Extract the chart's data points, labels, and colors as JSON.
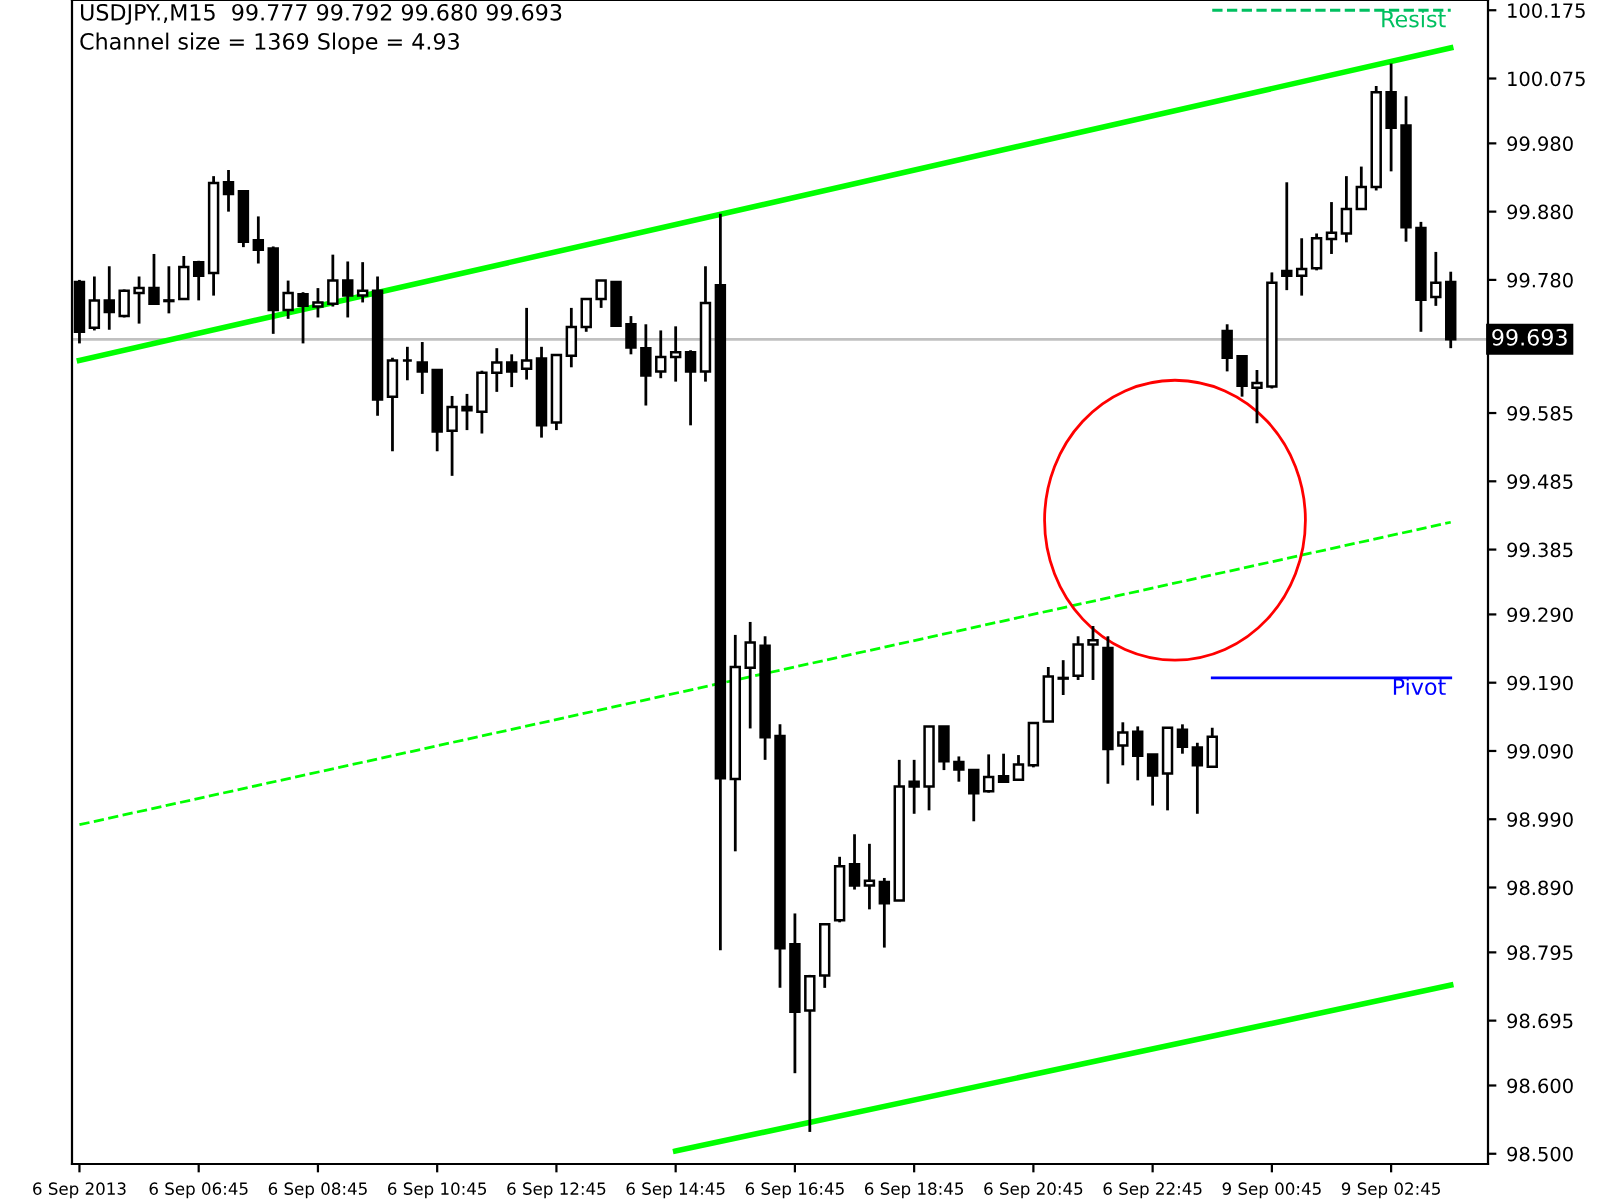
{
  "chart_data": {
    "type": "candlestick",
    "title": "USDJPY.,M15  99.777 99.792 99.680 99.693",
    "annotations": [
      "Channel size = 1369 Slope = 4.93"
    ],
    "categories": [
      "6 Sep 2013",
      null,
      null,
      null,
      null,
      null,
      null,
      null,
      "6 Sep 06:45",
      null,
      null,
      null,
      null,
      null,
      null,
      null,
      "6 Sep 08:45",
      null,
      null,
      null,
      null,
      null,
      null,
      null,
      "6 Sep 10:45",
      null,
      null,
      null,
      null,
      null,
      null,
      null,
      "6 Sep 12:45",
      null,
      null,
      null,
      null,
      null,
      null,
      null,
      "6 Sep 14:45",
      null,
      null,
      null,
      null,
      null,
      null,
      null,
      "6 Sep 16:45",
      null,
      null,
      null,
      null,
      null,
      null,
      null,
      "6 Sep 18:45",
      null,
      null,
      null,
      null,
      null,
      null,
      null,
      "6 Sep 20:45",
      null,
      null,
      null,
      null,
      null,
      null,
      null,
      "6 Sep 22:45",
      null,
      null,
      null,
      null,
      null,
      null,
      null,
      "9 Sep 00:45",
      null,
      null,
      null,
      null,
      null,
      null,
      null,
      "9 Sep 02:45",
      null,
      null,
      null,
      null
    ],
    "ohlc": [
      [
        99.777,
        99.78,
        99.687,
        99.704
      ],
      [
        99.71,
        99.785,
        99.706,
        99.75
      ],
      [
        99.75,
        99.8,
        99.707,
        99.733
      ],
      [
        99.727,
        99.766,
        99.725,
        99.764
      ],
      [
        99.761,
        99.785,
        99.716,
        99.768
      ],
      [
        99.768,
        99.818,
        99.745,
        99.745
      ],
      [
        99.749,
        99.8,
        99.731,
        99.75
      ],
      [
        99.752,
        99.815,
        99.752,
        99.799
      ],
      [
        99.806,
        99.808,
        99.75,
        99.786
      ],
      [
        99.79,
        99.932,
        99.757,
        99.922
      ],
      [
        99.923,
        99.941,
        99.88,
        99.906
      ],
      [
        99.91,
        99.91,
        99.828,
        99.836
      ],
      [
        99.838,
        99.873,
        99.804,
        99.824
      ],
      [
        99.826,
        99.829,
        99.701,
        99.736
      ],
      [
        99.736,
        99.779,
        99.723,
        99.761
      ],
      [
        99.759,
        99.762,
        99.687,
        99.742
      ],
      [
        99.741,
        99.768,
        99.725,
        99.747
      ],
      [
        99.745,
        99.817,
        99.741,
        99.779
      ],
      [
        99.779,
        99.807,
        99.725,
        99.757
      ],
      [
        99.757,
        99.806,
        99.747,
        99.764
      ],
      [
        99.764,
        99.785,
        99.581,
        99.605
      ],
      [
        99.609,
        99.666,
        99.529,
        99.662
      ],
      [
        99.662,
        99.682,
        99.633,
        99.662
      ],
      [
        99.659,
        99.689,
        99.613,
        99.646
      ],
      [
        99.648,
        99.648,
        99.529,
        99.558
      ],
      [
        99.559,
        99.61,
        99.493,
        99.594
      ],
      [
        99.594,
        99.613,
        99.56,
        99.589
      ],
      [
        99.587,
        99.647,
        99.555,
        99.644
      ],
      [
        99.644,
        99.68,
        99.616,
        99.659
      ],
      [
        99.659,
        99.671,
        99.623,
        99.646
      ],
      [
        99.65,
        99.739,
        99.634,
        99.662
      ],
      [
        99.665,
        99.682,
        99.549,
        99.567
      ],
      [
        99.571,
        99.67,
        99.56,
        99.67
      ],
      [
        99.669,
        99.739,
        99.652,
        99.711
      ],
      [
        99.711,
        99.752,
        99.704,
        99.752
      ],
      [
        99.752,
        99.779,
        99.739,
        99.779
      ],
      [
        99.777,
        99.777,
        99.713,
        99.713
      ],
      [
        99.715,
        99.727,
        99.671,
        99.681
      ],
      [
        99.68,
        99.715,
        99.596,
        99.64
      ],
      [
        99.646,
        99.706,
        99.636,
        99.667
      ],
      [
        99.667,
        99.712,
        99.631,
        99.674
      ],
      [
        99.674,
        99.677,
        99.567,
        99.646
      ],
      [
        99.646,
        99.8,
        99.631,
        99.746
      ],
      [
        99.772,
        99.877,
        98.798,
        99.05
      ],
      [
        99.049,
        99.26,
        98.943,
        99.213
      ],
      [
        99.212,
        99.279,
        99.123,
        99.249
      ],
      [
        99.244,
        99.258,
        99.077,
        99.11
      ],
      [
        99.112,
        99.129,
        98.743,
        98.801
      ],
      [
        98.807,
        98.852,
        98.618,
        98.708
      ],
      [
        98.71,
        98.762,
        98.532,
        98.76
      ],
      [
        98.761,
        98.836,
        98.743,
        98.836
      ],
      [
        98.842,
        98.935,
        98.839,
        98.921
      ],
      [
        98.924,
        98.968,
        98.887,
        98.893
      ],
      [
        98.893,
        98.954,
        98.858,
        98.9
      ],
      [
        98.898,
        98.904,
        98.802,
        98.867
      ],
      [
        98.871,
        99.077,
        98.871,
        99.038
      ],
      [
        99.045,
        99.077,
        98.998,
        99.038
      ],
      [
        99.038,
        99.126,
        99.003,
        99.126
      ],
      [
        99.126,
        99.126,
        99.062,
        99.075
      ],
      [
        99.074,
        99.082,
        99.045,
        99.063
      ],
      [
        99.062,
        99.062,
        98.987,
        99.028
      ],
      [
        99.031,
        99.085,
        99.029,
        99.052
      ],
      [
        99.053,
        99.086,
        99.045,
        99.045
      ],
      [
        99.048,
        99.084,
        99.048,
        99.07
      ],
      [
        99.069,
        99.131,
        99.066,
        99.131
      ],
      [
        99.133,
        99.213,
        99.133,
        99.199
      ],
      [
        99.196,
        99.223,
        99.172,
        99.197
      ],
      [
        99.2,
        99.258,
        99.194,
        99.246
      ],
      [
        99.246,
        99.273,
        99.194,
        99.252
      ],
      [
        99.241,
        99.258,
        99.042,
        99.093
      ],
      [
        99.098,
        99.132,
        99.069,
        99.117
      ],
      [
        99.118,
        99.126,
        99.047,
        99.083
      ],
      [
        99.085,
        99.085,
        99.01,
        99.054
      ],
      [
        99.057,
        99.124,
        99.003,
        99.124
      ],
      [
        99.121,
        99.129,
        99.086,
        99.096
      ],
      [
        99.095,
        99.102,
        98.998,
        99.069
      ],
      [
        99.067,
        99.124,
        99.067,
        99.111
      ],
      [
        99.705,
        99.715,
        99.646,
        99.666
      ],
      [
        99.668,
        99.668,
        99.609,
        99.625
      ],
      [
        99.622,
        99.648,
        99.57,
        99.629
      ],
      [
        99.624,
        99.791,
        99.621,
        99.776
      ],
      [
        99.793,
        99.923,
        99.765,
        99.786
      ],
      [
        99.786,
        99.841,
        99.757,
        99.796
      ],
      [
        99.797,
        99.848,
        99.794,
        99.841
      ],
      [
        99.84,
        99.894,
        99.818,
        99.849
      ],
      [
        99.848,
        99.932,
        99.835,
        99.884
      ],
      [
        99.884,
        99.946,
        99.884,
        99.916
      ],
      [
        99.916,
        100.064,
        99.911,
        100.055
      ],
      [
        100.055,
        100.097,
        99.939,
        100.003
      ],
      [
        100.006,
        100.049,
        99.836,
        99.857
      ],
      [
        99.856,
        99.865,
        99.704,
        99.751
      ],
      [
        99.755,
        99.821,
        99.742,
        99.776
      ],
      [
        99.777,
        99.792,
        99.68,
        99.693
      ]
    ],
    "series": [
      {
        "type": "line",
        "color": "#00ff00",
        "line_style": "solid",
        "values": [
          99.662,
          null,
          null,
          null,
          null,
          null,
          null,
          null,
          null,
          null,
          null,
          null,
          null,
          null,
          null,
          null,
          null,
          null,
          null,
          null,
          null,
          null,
          null,
          null,
          null,
          null,
          null,
          null,
          null,
          null,
          null,
          null,
          null,
          null,
          null,
          null,
          null,
          null,
          null,
          null,
          null,
          null,
          null,
          null,
          null,
          null,
          null,
          null,
          null,
          null,
          null,
          null,
          null,
          null,
          null,
          null,
          null,
          null,
          null,
          null,
          null,
          null,
          null,
          null,
          null,
          null,
          null,
          null,
          null,
          null,
          null,
          null,
          null,
          null,
          null,
          null,
          null,
          null,
          null,
          null,
          null,
          null,
          null,
          null,
          null,
          null,
          null,
          null,
          null,
          null,
          null,
          null,
          100.12
        ]
      },
      {
        "type": "line",
        "color": "#00ff00",
        "line_style": "dashed",
        "values": [
          98.982,
          null,
          null,
          null,
          null,
          null,
          null,
          null,
          null,
          null,
          null,
          null,
          null,
          null,
          null,
          null,
          null,
          null,
          null,
          null,
          null,
          null,
          null,
          null,
          null,
          null,
          null,
          null,
          null,
          null,
          null,
          null,
          null,
          null,
          null,
          null,
          null,
          null,
          null,
          null,
          null,
          null,
          null,
          null,
          null,
          null,
          null,
          null,
          null,
          null,
          null,
          null,
          null,
          null,
          null,
          null,
          null,
          null,
          null,
          null,
          null,
          null,
          null,
          null,
          null,
          null,
          null,
          null,
          null,
          null,
          null,
          null,
          null,
          null,
          null,
          null,
          null,
          null,
          null,
          null,
          null,
          null,
          null,
          null,
          null,
          null,
          null,
          null,
          null,
          null,
          null,
          null,
          99.425
        ]
      },
      {
        "type": "line",
        "color": "#00ff00",
        "line_style": "solid",
        "values": [
          null,
          null,
          null,
          null,
          null,
          null,
          null,
          null,
          null,
          null,
          null,
          null,
          null,
          null,
          null,
          null,
          null,
          null,
          null,
          null,
          null,
          null,
          null,
          null,
          null,
          null,
          null,
          null,
          null,
          null,
          null,
          null,
          null,
          null,
          null,
          null,
          null,
          null,
          null,
          null,
          98.504,
          null,
          null,
          null,
          null,
          null,
          null,
          null,
          null,
          null,
          null,
          null,
          null,
          null,
          null,
          null,
          null,
          null,
          null,
          null,
          null,
          null,
          null,
          null,
          null,
          null,
          null,
          null,
          null,
          null,
          null,
          null,
          null,
          null,
          null,
          null,
          null,
          null,
          null,
          null,
          null,
          null,
          null,
          null,
          null,
          null,
          null,
          null,
          null,
          null,
          null,
          null,
          98.747
        ]
      },
      {
        "type": "line",
        "name": "Resist",
        "color": "#00c060",
        "line_style": "dashed",
        "values": [
          null,
          null,
          null,
          null,
          null,
          null,
          null,
          null,
          null,
          null,
          null,
          null,
          null,
          null,
          null,
          null,
          null,
          null,
          null,
          null,
          null,
          null,
          null,
          null,
          null,
          null,
          null,
          null,
          null,
          null,
          null,
          null,
          null,
          null,
          null,
          null,
          null,
          null,
          null,
          null,
          null,
          null,
          null,
          null,
          null,
          null,
          null,
          null,
          null,
          null,
          null,
          null,
          null,
          null,
          null,
          null,
          null,
          null,
          null,
          null,
          null,
          null,
          null,
          null,
          null,
          null,
          null,
          null,
          null,
          null,
          null,
          null,
          null,
          null,
          null,
          null,
          100.175,
          null,
          null,
          null,
          null,
          null,
          null,
          null,
          null,
          null,
          null,
          null,
          null,
          null,
          null,
          null,
          100.175
        ]
      },
      {
        "type": "line",
        "name": "Pivot",
        "color": "#0000ff",
        "line_style": "solid",
        "values": [
          null,
          null,
          null,
          null,
          null,
          null,
          null,
          null,
          null,
          null,
          null,
          null,
          null,
          null,
          null,
          null,
          null,
          null,
          null,
          null,
          null,
          null,
          null,
          null,
          null,
          null,
          null,
          null,
          null,
          null,
          null,
          null,
          null,
          null,
          null,
          null,
          null,
          null,
          null,
          null,
          null,
          null,
          null,
          null,
          null,
          null,
          null,
          null,
          null,
          null,
          null,
          null,
          null,
          null,
          null,
          null,
          null,
          null,
          null,
          null,
          null,
          null,
          null,
          null,
          null,
          null,
          null,
          null,
          null,
          null,
          null,
          null,
          null,
          null,
          null,
          null,
          99.197,
          null,
          null,
          null,
          null,
          null,
          null,
          null,
          null,
          null,
          null,
          null,
          null,
          null,
          null,
          null,
          99.197
        ]
      }
    ],
    "ref_lines": [
      {
        "axis": "y",
        "value": 99.693,
        "label": "99.693",
        "color": "#c0c0c0"
      }
    ],
    "ylim": [
      98.485,
      100.19
    ],
    "yticks": [
      {
        "value": 98.5,
        "label": "98.500"
      },
      {
        "value": 98.6,
        "label": "98.600"
      },
      98.695,
      98.795,
      {
        "value": 98.89,
        "label": "98.890"
      },
      {
        "value": 98.99,
        "label": "98.990"
      },
      {
        "value": 99.09,
        "label": "99.090"
      },
      {
        "value": 99.19,
        "label": "99.190"
      },
      {
        "value": 99.29,
        "label": "99.290"
      },
      99.385,
      99.485,
      99.585,
      {
        "value": 99.78,
        "label": "99.780"
      },
      {
        "value": 99.88,
        "label": "99.880"
      },
      {
        "value": 99.98,
        "label": "99.980"
      },
      100.075,
      100.175
    ],
    "grid": false,
    "legend": false
  }
}
